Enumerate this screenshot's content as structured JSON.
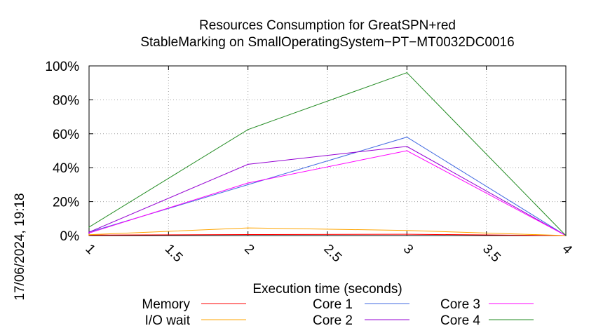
{
  "chart_data": {
    "type": "line",
    "title": "Resources Consumption for GreatSPN+red",
    "subtitle": "StableMarking on SmallOperatingSystem−PT−MT0032DC0016",
    "xlabel": "Execution time (seconds)",
    "ylabel": "",
    "xlim": [
      1,
      4
    ],
    "ylim": [
      0,
      100
    ],
    "x_ticks": [
      1,
      1.5,
      2,
      2.5,
      3,
      3.5,
      4
    ],
    "x_tick_labels": [
      "1",
      "1.5",
      "2",
      "2.5",
      "3",
      "3.5",
      "4"
    ],
    "y_ticks": [
      0,
      20,
      40,
      60,
      80,
      100
    ],
    "y_tick_labels": [
      "0%",
      "20%",
      "40%",
      "60%",
      "80%",
      "100%"
    ],
    "grid": true,
    "legend_position": "bottom",
    "timestamp": "17/06/2024, 19:18",
    "x": [
      1,
      2,
      3,
      4
    ],
    "series": [
      {
        "name": "Memory",
        "color": "#ff0000",
        "values": [
          0.3,
          0.6,
          0.8,
          0
        ]
      },
      {
        "name": "I/O wait",
        "color": "#ffa500",
        "values": [
          0.5,
          4.5,
          3,
          0
        ]
      },
      {
        "name": "Core 1",
        "color": "#4169e1",
        "values": [
          2,
          30,
          58,
          0
        ]
      },
      {
        "name": "Core 2",
        "color": "#9400d3",
        "values": [
          2,
          42,
          52.5,
          0
        ]
      },
      {
        "name": "Core 3",
        "color": "#ff00ff",
        "values": [
          1.5,
          31,
          50,
          0
        ]
      },
      {
        "name": "Core 4",
        "color": "#228b22",
        "values": [
          5,
          62.5,
          96,
          0
        ]
      }
    ]
  }
}
